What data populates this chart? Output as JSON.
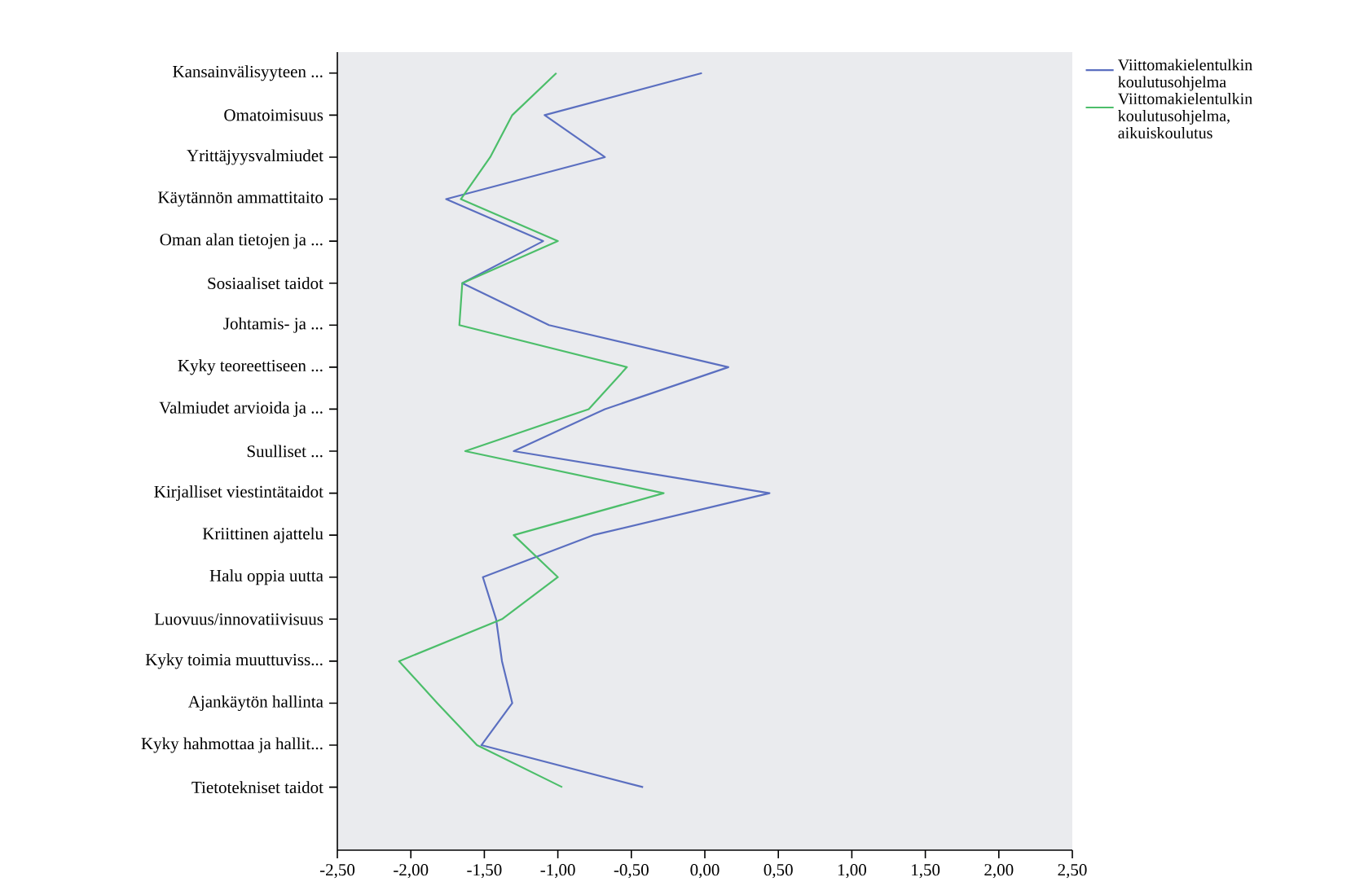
{
  "chart_data": {
    "type": "line",
    "orientation": "horizontal",
    "categories": [
      "Kansainvälisyyteen ...",
      "Omatoimisuus",
      "Yrittäjyysvalmiudet",
      "Käytännön ammattitaito",
      "Oman alan tietojen ja ...",
      "Sosiaaliset taidot",
      "Johtamis- ja ...",
      "Kyky teoreettiseen ...",
      "Valmiudet arvioida ja ...",
      "Suulliset ...",
      "Kirjalliset viestintätaidot",
      "Kriittinen ajattelu",
      "Halu oppia uutta",
      "Luovuus/innovatiivisuus",
      "Kyky toimia muuttuviss...",
      "Ajankäytön hallinta",
      "Kyky hahmottaa ja hallit...",
      "Tietotekniset taidot"
    ],
    "series": [
      {
        "name": "Viittomakielentulkin koulutusohjelma",
        "color": "#5b6fc0",
        "values": [
          -0.02,
          -1.09,
          -0.68,
          -1.76,
          -1.1,
          -1.65,
          -1.06,
          0.16,
          -0.68,
          -1.3,
          0.44,
          -0.76,
          -1.51,
          -1.42,
          -1.38,
          -1.31,
          -1.52,
          -0.42
        ]
      },
      {
        "name": "Viittomakielentulkin koulutusohjelma, aikuiskoulutus",
        "color": "#4cbe6a",
        "values": [
          -1.01,
          -1.31,
          -1.46,
          -1.66,
          -1.0,
          -1.65,
          -1.67,
          -0.53,
          -0.79,
          -1.63,
          -0.28,
          -1.3,
          -1.0,
          -1.38,
          -2.08,
          -1.82,
          -1.55,
          -0.97
        ]
      }
    ],
    "xlim": [
      -2.5,
      2.5
    ],
    "xticks": [
      {
        "value": -2.5,
        "label": "-2,50"
      },
      {
        "value": -2.0,
        "label": "-2,00"
      },
      {
        "value": -1.5,
        "label": "-1,50"
      },
      {
        "value": -1.0,
        "label": "-1,00"
      },
      {
        "value": -0.5,
        "label": "-0,50"
      },
      {
        "value": 0.0,
        "label": "0,00"
      },
      {
        "value": 0.5,
        "label": "0,50"
      },
      {
        "value": 1.0,
        "label": "1,00"
      },
      {
        "value": 1.5,
        "label": "1,50"
      },
      {
        "value": 2.0,
        "label": "2,00"
      },
      {
        "value": 2.5,
        "label": "2,50"
      }
    ],
    "legend": "right",
    "marker": "none",
    "line_style": "solid",
    "grid": false
  }
}
